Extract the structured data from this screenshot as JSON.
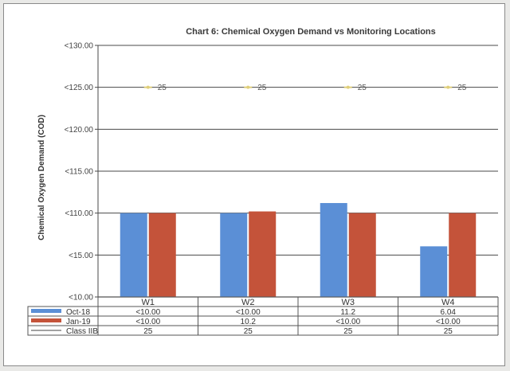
{
  "chart_data": {
    "type": "bar",
    "title": "Chart 6: Chemical Oxygen Demand vs Monitoring Locations",
    "xlabel": "",
    "ylabel": "Chemical Oxygen Demand (COD)",
    "categories": [
      "W1",
      "W2",
      "W3",
      "W4"
    ],
    "y_tick_labels": [
      "<10.00",
      "<15.00",
      "<110.00",
      "<115.00",
      "<120.00",
      "<125.00",
      "<130.00"
    ],
    "ylim": [
      0,
      30
    ],
    "grid": true,
    "legend_placement": "data-table",
    "series": [
      {
        "name": "Oct-18",
        "kind": "bar",
        "color": "#5b8fd6",
        "values": [
          10,
          10,
          11.2,
          6.04
        ],
        "table_labels": [
          "<10.00",
          "<10.00",
          "11.2",
          "6.04"
        ]
      },
      {
        "name": "Jan-19",
        "kind": "bar",
        "color": "#c4533a",
        "values": [
          10,
          10.2,
          10,
          10
        ],
        "table_labels": [
          "<10.00",
          "10.2",
          "<10.00",
          "<10.00"
        ]
      },
      {
        "name": "Class IIB",
        "kind": "line",
        "color": "#e0cf7a",
        "values": [
          25,
          25,
          25,
          25
        ],
        "table_labels": [
          "25",
          "25",
          "25",
          "25"
        ],
        "point_labels": [
          "25",
          "25",
          "25",
          "25"
        ]
      }
    ]
  }
}
